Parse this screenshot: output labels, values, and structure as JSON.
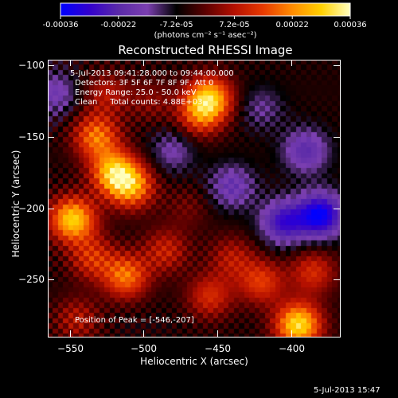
{
  "colorbar": {
    "ticks": [
      "-0.00036",
      "-0.00022",
      "-7.2e-05",
      "7.2e-05",
      "0.00022",
      "0.00036"
    ],
    "units": "(photons cm⁻² s⁻¹ asec⁻²)"
  },
  "timestamp": "5-Jul-2013 15:47",
  "chart_data": {
    "type": "heatmap",
    "title": "Reconstructed RHESSI Image",
    "xlabel": "Heliocentric X (arcsec)",
    "ylabel": "Heliocentric Y (arcsec)",
    "xlim": [
      -565,
      -367
    ],
    "ylim": [
      -290,
      -96
    ],
    "x_ticks": [
      -550,
      -500,
      -450,
      -400
    ],
    "y_ticks": [
      -100,
      -150,
      -200,
      -250
    ],
    "value_range": [
      -0.00036,
      0.00036
    ],
    "colormap": [
      "#0000ff",
      "#3300cc",
      "#5a2aa8",
      "#7b3fb0",
      "#000000",
      "#5c0000",
      "#b41000",
      "#e83a00",
      "#ff8c00",
      "#ffd000",
      "#ffffc0"
    ],
    "annotations": [
      "5-Jul-2013 09:41:28.000 to 09:44:00.000",
      "Detectors: 3F 5F 6F 7F 8F 9F, Att 0",
      "Energy Range: 25.0 - 50.0 keV",
      "Clean     Total counts: 4.88E+03",
      "Position of Peak = [-546,-207]"
    ],
    "peak": {
      "x": -546,
      "y": -207
    },
    "sources": [
      {
        "x": -548,
        "y": -208,
        "value": 0.00034
      },
      {
        "x": -520,
        "y": -175,
        "value": 0.0003
      },
      {
        "x": -508,
        "y": -185,
        "value": 0.00026
      },
      {
        "x": -532,
        "y": -150,
        "value": 0.00024
      },
      {
        "x": -455,
        "y": -123,
        "value": 0.0003
      },
      {
        "x": -462,
        "y": -135,
        "value": 0.00018
      },
      {
        "x": -512,
        "y": -248,
        "value": 0.00024
      },
      {
        "x": -485,
        "y": -230,
        "value": 0.00014
      },
      {
        "x": -535,
        "y": -235,
        "value": 0.00016
      },
      {
        "x": -395,
        "y": -282,
        "value": 0.00036
      },
      {
        "x": -420,
        "y": -252,
        "value": 0.00018
      },
      {
        "x": -455,
        "y": -262,
        "value": 0.00016
      },
      {
        "x": -440,
        "y": -235,
        "value": 0.00012
      },
      {
        "x": -525,
        "y": -120,
        "value": 0.00012
      },
      {
        "x": -495,
        "y": -125,
        "value": 8e-05
      },
      {
        "x": -545,
        "y": -278,
        "value": 0.00012
      },
      {
        "x": -385,
        "y": -245,
        "value": 0.00016
      },
      {
        "x": -470,
        "y": -200,
        "value": 6e-05
      },
      {
        "x": -420,
        "y": -130,
        "value": -8e-05
      },
      {
        "x": -405,
        "y": -210,
        "value": -0.00022
      },
      {
        "x": -380,
        "y": -205,
        "value": -0.0003
      },
      {
        "x": -440,
        "y": -185,
        "value": -0.00014
      },
      {
        "x": -480,
        "y": -160,
        "value": -0.0001
      },
      {
        "x": -560,
        "y": -120,
        "value": -0.00012
      },
      {
        "x": -390,
        "y": -160,
        "value": -0.00016
      }
    ]
  }
}
